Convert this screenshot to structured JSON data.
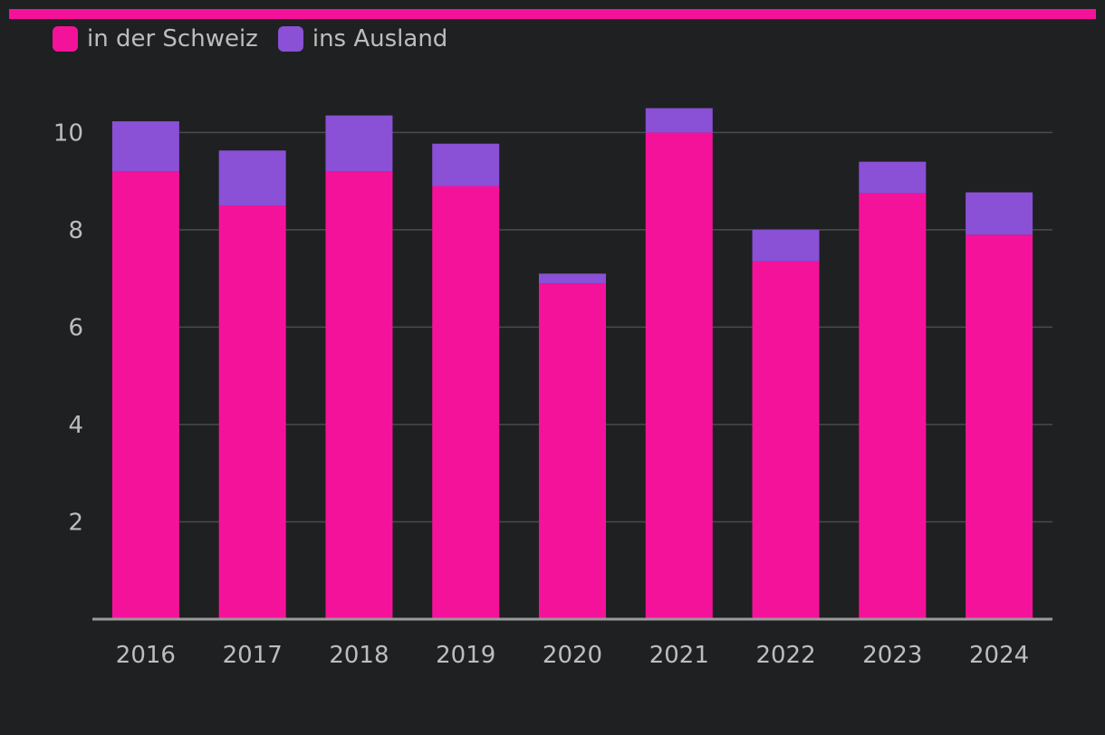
{
  "colors": {
    "accent": "#f5129b",
    "domestic": "#f5129b",
    "abroad": "#8a50d6",
    "background": "#1f2022",
    "grid": "#4a4b4e",
    "axis": "#9a9a9a",
    "text": "#bdbdbd"
  },
  "legend": {
    "items": [
      {
        "label": "in der Schweiz",
        "color": "#f5129b"
      },
      {
        "label": "ins Ausland",
        "color": "#8a50d6"
      }
    ]
  },
  "chart_data": {
    "type": "bar",
    "stacked": true,
    "title": "",
    "xlabel": "",
    "ylabel": "",
    "categories": [
      "2016",
      "2017",
      "2018",
      "2019",
      "2020",
      "2021",
      "2022",
      "2023",
      "2024"
    ],
    "series": [
      {
        "name": "in der Schweiz",
        "color": "#f5129b",
        "values": [
          9.2,
          8.5,
          9.2,
          8.9,
          6.9,
          10.0,
          7.35,
          8.75,
          7.9
        ]
      },
      {
        "name": "ins Ausland",
        "color": "#8a50d6",
        "values": [
          1.03,
          1.13,
          1.15,
          0.87,
          0.2,
          0.5,
          0.65,
          0.65,
          0.87
        ]
      }
    ],
    "ylim": [
      0,
      10.9
    ],
    "yticks": [
      2,
      4,
      6,
      8,
      10
    ],
    "grid": true,
    "legend_position": "top-left"
  }
}
